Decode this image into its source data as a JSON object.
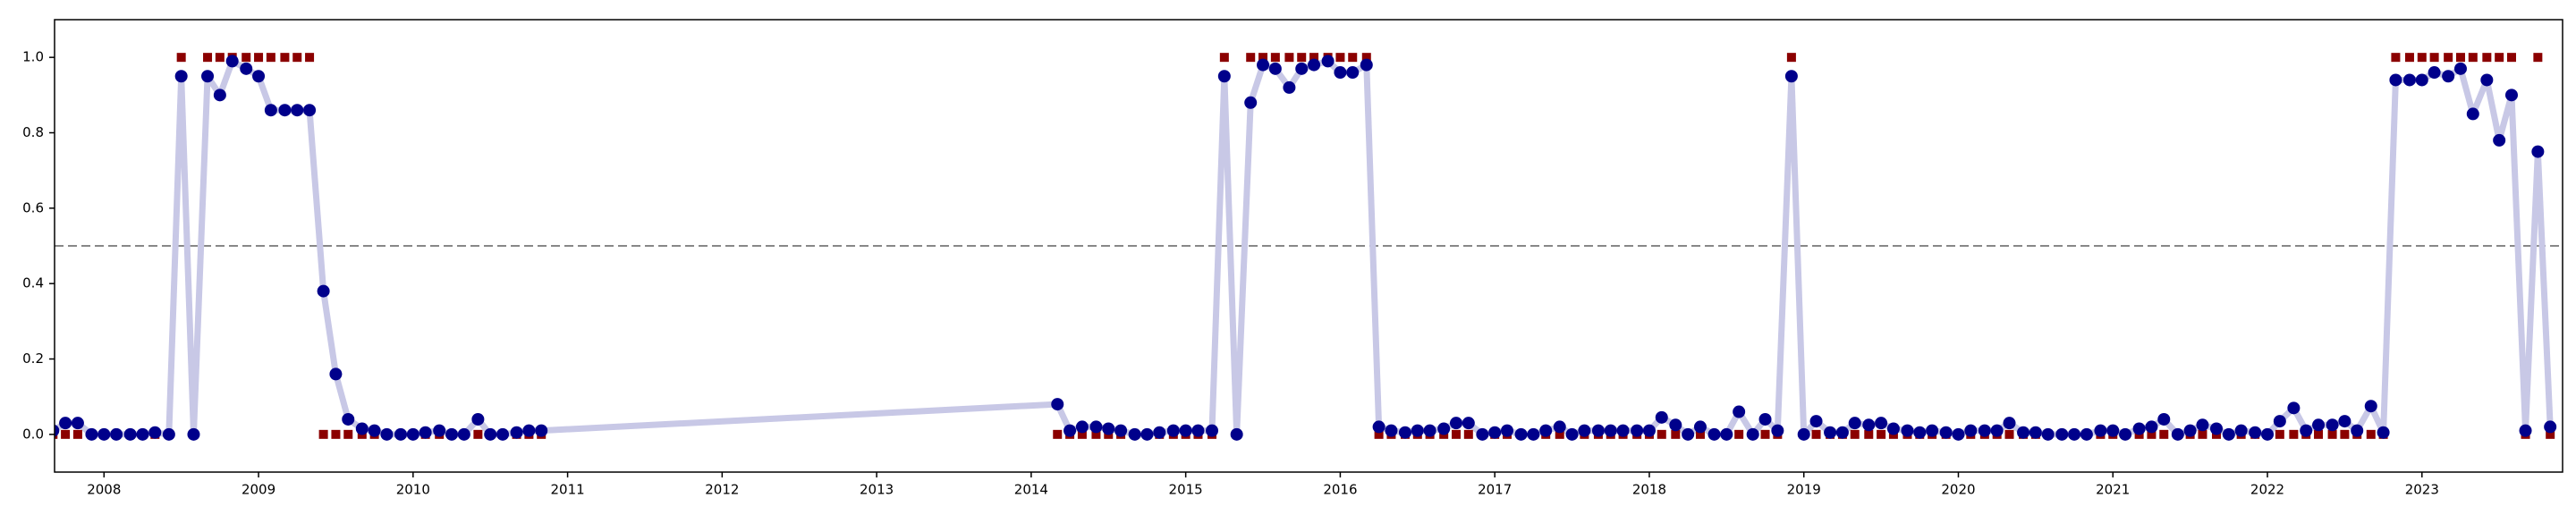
{
  "chart_data": {
    "type": "line",
    "x": [
      2007.67,
      2007.75,
      2007.83,
      2007.92,
      2008.0,
      2008.08,
      2008.17,
      2008.25,
      2008.33,
      2008.42,
      2008.5,
      2008.58,
      2008.67,
      2008.75,
      2008.83,
      2008.92,
      2009.0,
      2009.08,
      2009.17,
      2009.25,
      2009.33,
      2009.42,
      2009.5,
      2009.58,
      2009.67,
      2009.75,
      2009.83,
      2009.92,
      2010.0,
      2010.08,
      2010.17,
      2010.25,
      2010.33,
      2010.42,
      2010.5,
      2010.58,
      2010.67,
      2010.75,
      2010.83,
      2014.17,
      2014.25,
      2014.33,
      2014.42,
      2014.5,
      2014.58,
      2014.67,
      2014.75,
      2014.83,
      2014.92,
      2015.0,
      2015.08,
      2015.17,
      2015.25,
      2015.33,
      2015.42,
      2015.5,
      2015.58,
      2015.67,
      2015.75,
      2015.83,
      2015.92,
      2016.0,
      2016.08,
      2016.17,
      2016.25,
      2016.33,
      2016.42,
      2016.5,
      2016.58,
      2016.67,
      2016.75,
      2016.83,
      2016.92,
      2017.0,
      2017.08,
      2017.17,
      2017.25,
      2017.33,
      2017.42,
      2017.5,
      2017.58,
      2017.67,
      2017.75,
      2017.83,
      2017.92,
      2018.0,
      2018.08,
      2018.17,
      2018.25,
      2018.33,
      2018.42,
      2018.5,
      2018.58,
      2018.67,
      2018.75,
      2018.83,
      2018.92,
      2019.0,
      2019.08,
      2019.17,
      2019.25,
      2019.33,
      2019.42,
      2019.5,
      2019.58,
      2019.67,
      2019.75,
      2019.83,
      2019.92,
      2020.0,
      2020.08,
      2020.17,
      2020.25,
      2020.33,
      2020.42,
      2020.5,
      2020.58,
      2020.67,
      2020.75,
      2020.83,
      2020.92,
      2021.0,
      2021.08,
      2021.17,
      2021.25,
      2021.33,
      2021.42,
      2021.5,
      2021.58,
      2021.67,
      2021.75,
      2021.83,
      2021.92,
      2022.0,
      2022.08,
      2022.17,
      2022.25,
      2022.33,
      2022.42,
      2022.5,
      2022.58,
      2022.67,
      2022.75,
      2022.83,
      2022.92,
      2023.0,
      2023.08,
      2023.17,
      2023.25,
      2023.33,
      2023.42,
      2023.5,
      2023.58,
      2023.67,
      2023.75,
      2023.83
    ],
    "series": [
      {
        "color": "#00008b",
        "line_color": "#c8c8e6",
        "marker": "circle",
        "line": true,
        "values": [
          0.01,
          0.03,
          0.03,
          0.0,
          0.0,
          0.0,
          0.0,
          0.0,
          0.005,
          0.0,
          0.95,
          0.0,
          0.95,
          0.9,
          0.99,
          0.97,
          0.95,
          0.86,
          0.86,
          0.86,
          0.86,
          0.38,
          0.16,
          0.04,
          0.015,
          0.01,
          0.0,
          0.0,
          0.0,
          0.005,
          0.01,
          0.0,
          0.0,
          0.04,
          0.0,
          0.0,
          0.005,
          0.01,
          0.01,
          0.08,
          0.01,
          0.02,
          0.02,
          0.015,
          0.01,
          0.0,
          0.0,
          0.005,
          0.01,
          0.01,
          0.01,
          0.01,
          0.95,
          0.0,
          0.88,
          0.98,
          0.97,
          0.92,
          0.97,
          0.98,
          0.99,
          0.96,
          0.96,
          0.98,
          0.02,
          0.01,
          0.005,
          0.01,
          0.01,
          0.015,
          0.03,
          0.03,
          0.0,
          0.005,
          0.01,
          0.0,
          0.0,
          0.01,
          0.02,
          0.0,
          0.01,
          0.01,
          0.01,
          0.01,
          0.01,
          0.01,
          0.045,
          0.025,
          0.0,
          0.02,
          0.0,
          0.0,
          0.06,
          0.0,
          0.04,
          0.01,
          0.95,
          0.0,
          0.035,
          0.005,
          0.005,
          0.03,
          0.025,
          0.03,
          0.015,
          0.01,
          0.005,
          0.01,
          0.005,
          0.0,
          0.01,
          0.01,
          0.01,
          0.03,
          0.005,
          0.005,
          0.0,
          0.0,
          0.0,
          0.0,
          0.01,
          0.01,
          0.0,
          0.015,
          0.02,
          0.04,
          0.0,
          0.01,
          0.025,
          0.015,
          0.0,
          0.01,
          0.005,
          0.0,
          0.035,
          0.07,
          0.01,
          0.025,
          0.025,
          0.035,
          0.01,
          0.075,
          0.005,
          0.94,
          0.94,
          0.94,
          0.96,
          0.95,
          0.97,
          0.85,
          0.94,
          0.78,
          0.9,
          0.01,
          0.75,
          0.02
        ]
      },
      {
        "color": "#8b0000",
        "marker": "square",
        "line": false,
        "values": [
          0,
          0,
          0,
          0,
          0,
          0,
          0,
          0,
          0,
          0,
          1,
          0,
          1,
          1,
          1,
          1,
          1,
          1,
          1,
          1,
          1,
          0,
          0,
          0,
          0,
          0,
          0,
          0,
          0,
          0,
          0,
          0,
          0,
          0,
          0,
          0,
          0,
          0,
          0,
          0,
          0,
          0,
          0,
          0,
          0,
          0,
          0,
          0,
          0,
          0,
          0,
          0,
          1,
          0,
          1,
          1,
          1,
          1,
          1,
          1,
          1,
          1,
          1,
          1,
          0,
          0,
          0,
          0,
          0,
          0,
          0,
          0,
          0,
          0,
          0,
          0,
          0,
          0,
          0,
          0,
          0,
          0,
          0,
          0,
          0,
          0,
          0,
          0,
          0,
          0,
          0,
          0,
          0,
          0,
          0,
          0,
          1,
          0,
          0,
          0,
          0,
          0,
          0,
          0,
          0,
          0,
          0,
          0,
          0,
          0,
          0,
          0,
          0,
          0,
          0,
          0,
          0,
          0,
          0,
          0,
          0,
          0,
          0,
          0,
          0,
          0,
          0,
          0,
          0,
          0,
          0,
          0,
          0,
          0,
          0,
          0,
          0,
          0,
          0,
          0,
          0,
          0,
          0,
          1,
          1,
          1,
          1,
          1,
          1,
          1,
          1,
          1,
          1,
          0,
          1,
          0
        ]
      }
    ],
    "threshold": {
      "value": 0.5,
      "color": "#888888",
      "style": "dashed"
    },
    "xlim": [
      2007.68,
      2023.91
    ],
    "xticks": [
      2008,
      2009,
      2010,
      2011,
      2012,
      2013,
      2014,
      2015,
      2016,
      2017,
      2018,
      2019,
      2020,
      2021,
      2022,
      2023
    ],
    "ylim": [
      -0.1,
      1.1
    ],
    "yticks": [
      {
        "value": 0,
        "label": "0.0"
      },
      {
        "value": 0.2,
        "label": "0.2"
      },
      {
        "value": 0.4,
        "label": "0.4"
      },
      {
        "value": 0.6,
        "label": "0.6"
      },
      {
        "value": 0.8,
        "label": "0.8"
      },
      {
        "value": 1,
        "label": "1.0"
      }
    ],
    "grid": false
  }
}
